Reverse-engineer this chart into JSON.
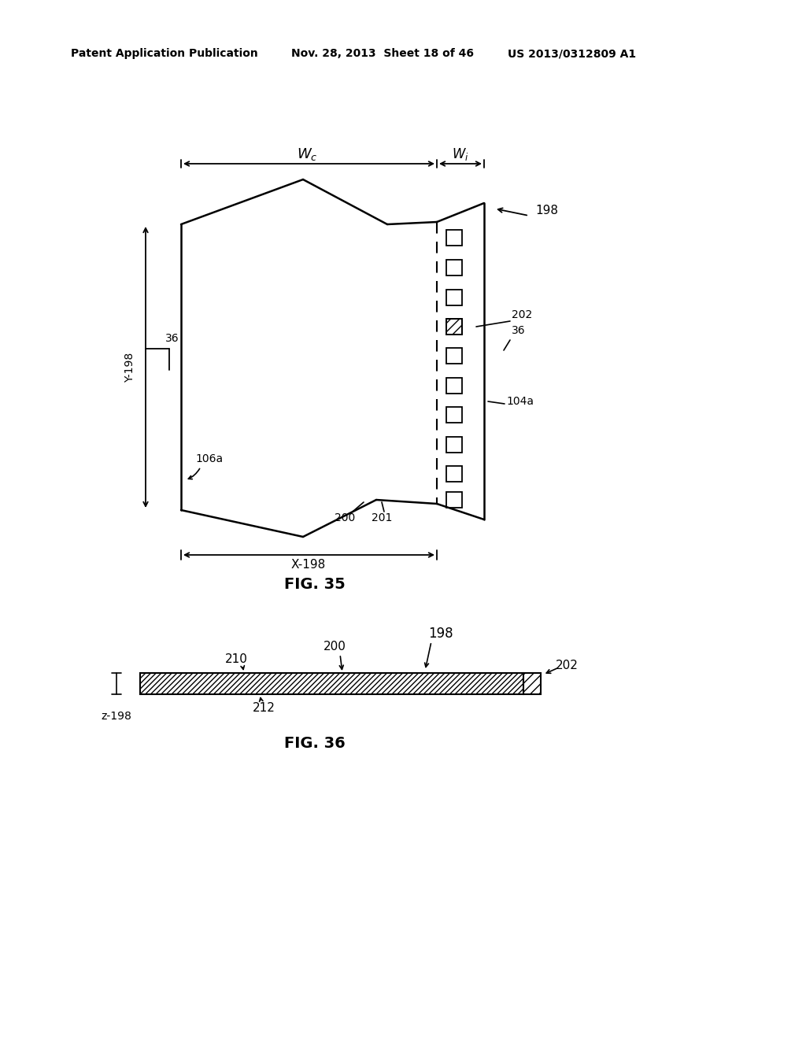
{
  "bg_color": "#ffffff",
  "header_left": "Patent Application Publication",
  "header_mid": "Nov. 28, 2013  Sheet 18 of 46",
  "header_right": "US 2013/0312809 A1",
  "fig35_caption": "FIG. 35",
  "fig36_caption": "FIG. 36",
  "lc": "#000000",
  "tc": "#000000"
}
